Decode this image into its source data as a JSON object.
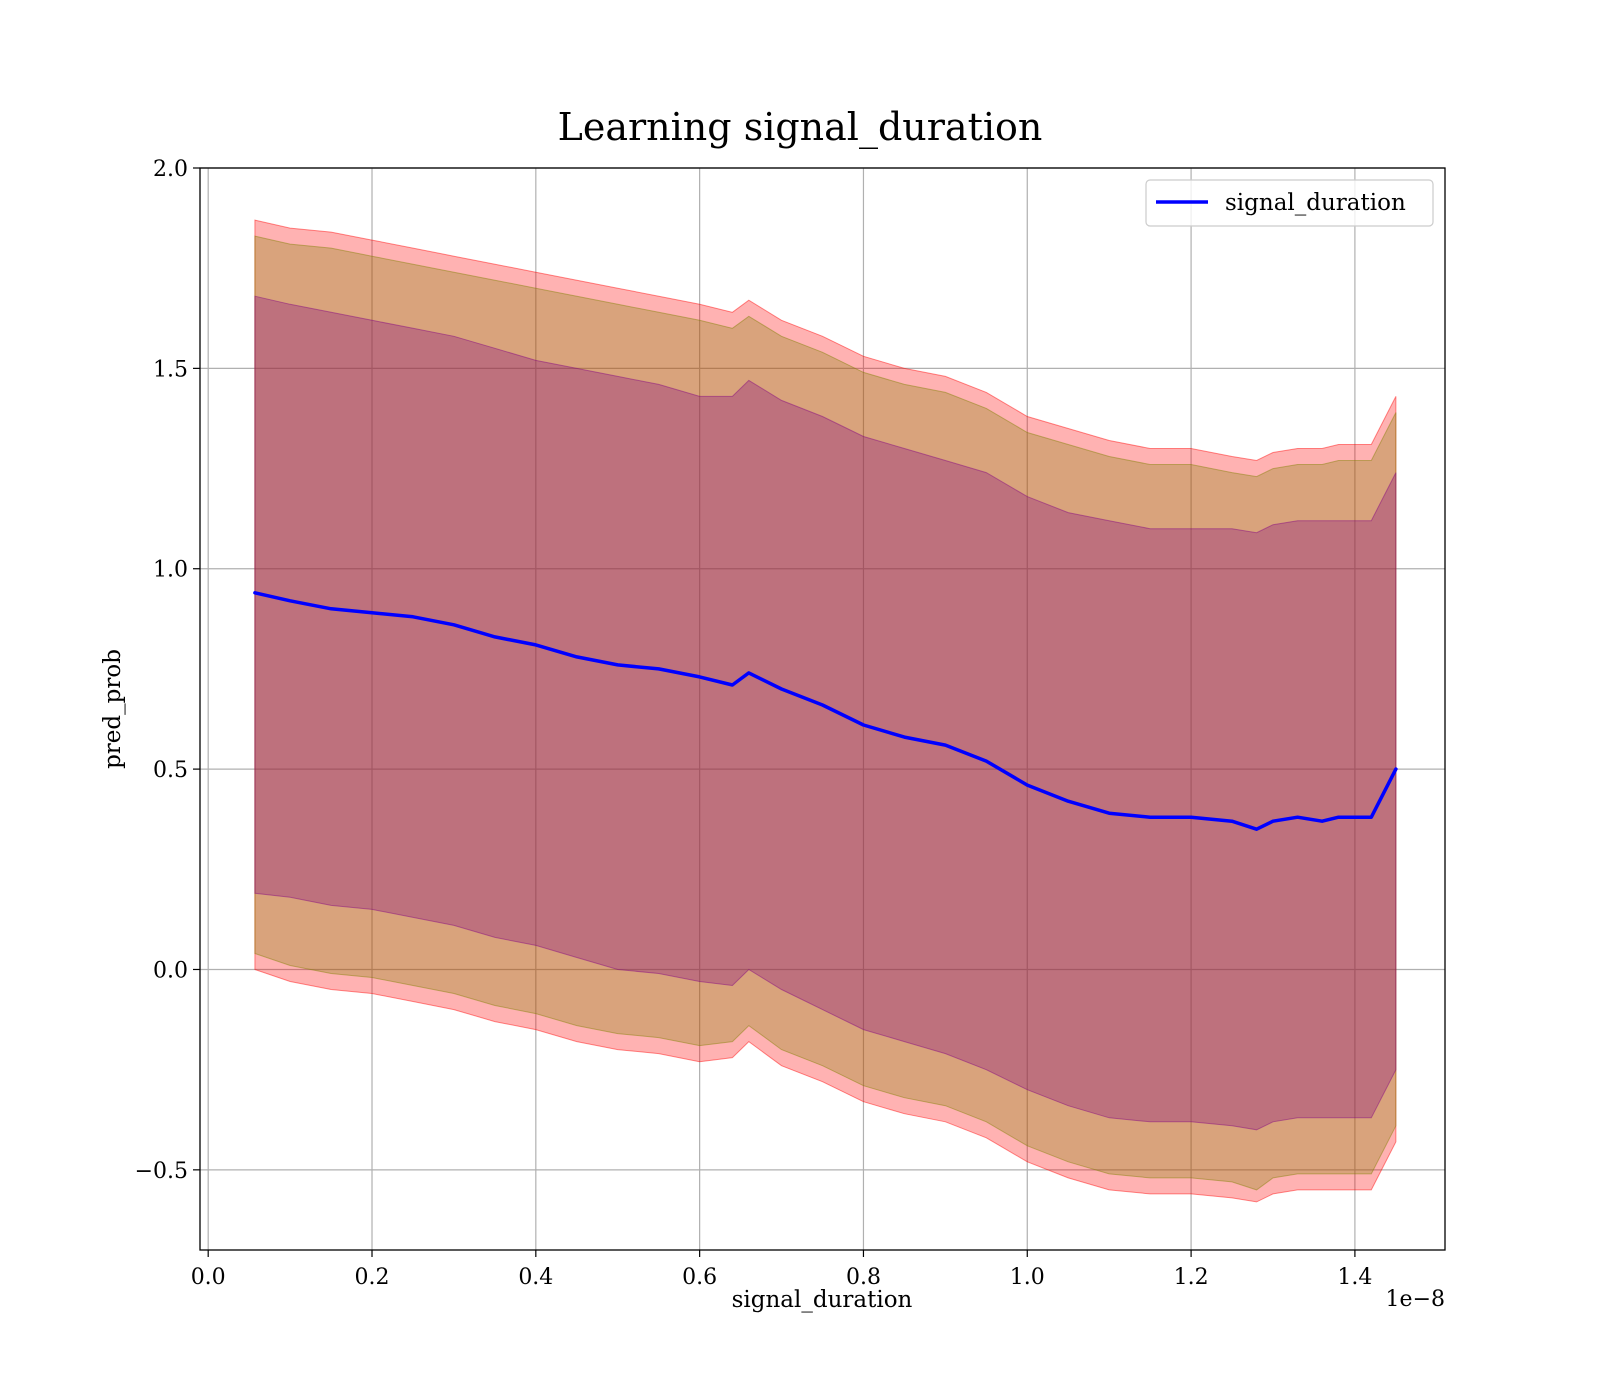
{
  "chart_data": {
    "type": "line",
    "title": "Learning signal_duration",
    "xlabel": "signal_duration",
    "ylabel": "pred_prob",
    "x_offset_text": "1e−8",
    "xlim": [
      -0.01,
      1.51
    ],
    "ylim": [
      -0.7,
      2.0
    ],
    "x_ticks": [
      0.0,
      0.2,
      0.4,
      0.6,
      0.8,
      1.0,
      1.2,
      1.4
    ],
    "x_tick_labels": [
      "0.0",
      "0.2",
      "0.4",
      "0.6",
      "0.8",
      "1.0",
      "1.2",
      "1.4"
    ],
    "y_ticks": [
      -0.5,
      0.0,
      0.5,
      1.0,
      1.5,
      2.0
    ],
    "y_tick_labels": [
      "−0.5",
      "0.0",
      "0.5",
      "1.0",
      "1.5",
      "2.0"
    ],
    "grid": true,
    "legend_position": "top-right",
    "series": [
      {
        "name": "signal_duration",
        "color": "#0000ff",
        "x": [
          0.057,
          0.1,
          0.15,
          0.2,
          0.25,
          0.3,
          0.35,
          0.4,
          0.45,
          0.5,
          0.55,
          0.6,
          0.64,
          0.66,
          0.7,
          0.75,
          0.8,
          0.85,
          0.9,
          0.95,
          1.0,
          1.05,
          1.1,
          1.15,
          1.2,
          1.25,
          1.28,
          1.3,
          1.33,
          1.36,
          1.38,
          1.42,
          1.45
        ],
        "y": [
          0.94,
          0.92,
          0.9,
          0.89,
          0.88,
          0.86,
          0.83,
          0.81,
          0.78,
          0.76,
          0.75,
          0.73,
          0.71,
          0.74,
          0.7,
          0.66,
          0.61,
          0.58,
          0.56,
          0.52,
          0.46,
          0.42,
          0.39,
          0.38,
          0.38,
          0.37,
          0.35,
          0.37,
          0.38,
          0.37,
          0.38,
          0.38,
          0.5
        ]
      }
    ],
    "bands": [
      {
        "color": "#ff0000",
        "opacity": 0.3,
        "x": [
          0.057,
          0.1,
          0.15,
          0.2,
          0.25,
          0.3,
          0.35,
          0.4,
          0.45,
          0.5,
          0.55,
          0.6,
          0.64,
          0.66,
          0.7,
          0.75,
          0.8,
          0.85,
          0.9,
          0.95,
          1.0,
          1.05,
          1.1,
          1.15,
          1.2,
          1.25,
          1.28,
          1.3,
          1.33,
          1.36,
          1.38,
          1.42,
          1.45
        ],
        "lower": [
          0.0,
          -0.03,
          -0.05,
          -0.06,
          -0.08,
          -0.1,
          -0.13,
          -0.15,
          -0.18,
          -0.2,
          -0.21,
          -0.23,
          -0.22,
          -0.18,
          -0.24,
          -0.28,
          -0.33,
          -0.36,
          -0.38,
          -0.42,
          -0.48,
          -0.52,
          -0.55,
          -0.56,
          -0.56,
          -0.57,
          -0.58,
          -0.56,
          -0.55,
          -0.55,
          -0.55,
          -0.55,
          -0.43
        ],
        "upper": [
          1.87,
          1.85,
          1.84,
          1.82,
          1.8,
          1.78,
          1.76,
          1.74,
          1.72,
          1.7,
          1.68,
          1.66,
          1.64,
          1.67,
          1.62,
          1.58,
          1.53,
          1.5,
          1.48,
          1.44,
          1.38,
          1.35,
          1.32,
          1.3,
          1.3,
          1.28,
          1.27,
          1.29,
          1.3,
          1.3,
          1.31,
          1.31,
          1.43
        ]
      },
      {
        "color": "#808000",
        "opacity": 0.3,
        "x": [
          0.057,
          0.1,
          0.15,
          0.2,
          0.25,
          0.3,
          0.35,
          0.4,
          0.45,
          0.5,
          0.55,
          0.6,
          0.64,
          0.66,
          0.7,
          0.75,
          0.8,
          0.85,
          0.9,
          0.95,
          1.0,
          1.05,
          1.1,
          1.15,
          1.2,
          1.25,
          1.28,
          1.3,
          1.33,
          1.36,
          1.38,
          1.42,
          1.45
        ],
        "lower": [
          0.04,
          0.01,
          -0.01,
          -0.02,
          -0.04,
          -0.06,
          -0.09,
          -0.11,
          -0.14,
          -0.16,
          -0.17,
          -0.19,
          -0.18,
          -0.14,
          -0.2,
          -0.24,
          -0.29,
          -0.32,
          -0.34,
          -0.38,
          -0.44,
          -0.48,
          -0.51,
          -0.52,
          -0.52,
          -0.53,
          -0.55,
          -0.52,
          -0.51,
          -0.51,
          -0.51,
          -0.51,
          -0.39
        ],
        "upper": [
          1.83,
          1.81,
          1.8,
          1.78,
          1.76,
          1.74,
          1.72,
          1.7,
          1.68,
          1.66,
          1.64,
          1.62,
          1.6,
          1.63,
          1.58,
          1.54,
          1.49,
          1.46,
          1.44,
          1.4,
          1.34,
          1.31,
          1.28,
          1.26,
          1.26,
          1.24,
          1.23,
          1.25,
          1.26,
          1.26,
          1.27,
          1.27,
          1.39
        ]
      },
      {
        "color": "#800080",
        "opacity": 0.3,
        "x": [
          0.057,
          0.1,
          0.15,
          0.2,
          0.25,
          0.3,
          0.35,
          0.4,
          0.45,
          0.5,
          0.55,
          0.6,
          0.64,
          0.66,
          0.7,
          0.75,
          0.8,
          0.85,
          0.9,
          0.95,
          1.0,
          1.05,
          1.1,
          1.15,
          1.2,
          1.25,
          1.28,
          1.3,
          1.33,
          1.36,
          1.38,
          1.42,
          1.45
        ],
        "lower": [
          0.19,
          0.18,
          0.16,
          0.15,
          0.13,
          0.11,
          0.08,
          0.06,
          0.03,
          0.0,
          -0.01,
          -0.03,
          -0.04,
          0.0,
          -0.05,
          -0.1,
          -0.15,
          -0.18,
          -0.21,
          -0.25,
          -0.3,
          -0.34,
          -0.37,
          -0.38,
          -0.38,
          -0.39,
          -0.4,
          -0.38,
          -0.37,
          -0.37,
          -0.37,
          -0.37,
          -0.25
        ],
        "upper": [
          1.68,
          1.66,
          1.64,
          1.62,
          1.6,
          1.58,
          1.55,
          1.52,
          1.5,
          1.48,
          1.46,
          1.43,
          1.43,
          1.47,
          1.42,
          1.38,
          1.33,
          1.3,
          1.27,
          1.24,
          1.18,
          1.14,
          1.12,
          1.1,
          1.1,
          1.1,
          1.09,
          1.11,
          1.12,
          1.12,
          1.12,
          1.12,
          1.24
        ]
      }
    ]
  }
}
